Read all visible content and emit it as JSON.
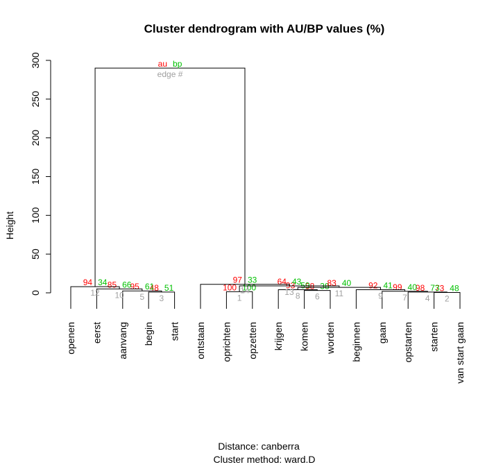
{
  "colors": {
    "au": "#ff0000",
    "bp": "#00c000",
    "edge": "#a0a0a0",
    "line": "#000000"
  },
  "legend": {
    "au": "au",
    "bp": "bp",
    "edge": "edge #"
  },
  "chart_data": {
    "type": "dendrogram",
    "title": "Cluster dendrogram with AU/BP values (%)",
    "ylabel": "Height",
    "xlabel": "",
    "ylim": [
      0,
      300
    ],
    "yticks": [
      0,
      50,
      100,
      150,
      200,
      250,
      300
    ],
    "subtitle_lines": [
      "Distance:  canberra",
      "Cluster method: ward.D"
    ],
    "leaves": [
      "openen",
      "eerst",
      "aanvang",
      "begin",
      "start",
      "ontstaan",
      "oprichten",
      "opzetten",
      "krijgen",
      "komen",
      "worden",
      "beginnen",
      "gaan",
      "opstarten",
      "starten",
      "van start gaan"
    ],
    "merges": [
      {
        "id": "c1",
        "left": "oprichten",
        "right": "opzetten",
        "height": 1.5,
        "au": "100",
        "bp": "100",
        "edge": "1"
      },
      {
        "id": "c2",
        "left": "starten",
        "right": "van start gaan",
        "height": 0.5,
        "au": "73",
        "bp": "48",
        "edge": "2"
      },
      {
        "id": "c3",
        "left": "begin",
        "right": "start",
        "height": 1.0,
        "au": "48",
        "bp": "51",
        "edge": "3"
      },
      {
        "id": "c4",
        "left": "opstarten",
        "right": "c2",
        "height": 1.0,
        "au": "98",
        "bp": "73",
        "edge": "4"
      },
      {
        "id": "c5",
        "left": "aanvang",
        "right": "c3",
        "height": 2.5,
        "au": "95",
        "bp": "61",
        "edge": "5"
      },
      {
        "id": "c6",
        "left": "komen",
        "right": "worden",
        "height": 3.0,
        "au": "58",
        "bp": "38",
        "edge": "6"
      },
      {
        "id": "c7",
        "left": "gaan",
        "right": "c4",
        "height": 2.0,
        "au": "99",
        "bp": "40",
        "edge": "7"
      },
      {
        "id": "c8",
        "left": "krijgen",
        "right": "c6",
        "height": 4.0,
        "au": "93",
        "bp": "59",
        "edge": "8"
      },
      {
        "id": "c9",
        "left": "beginnen",
        "right": "c7",
        "height": 4.0,
        "au": "92",
        "bp": "41",
        "edge": "9"
      },
      {
        "id": "c10",
        "left": "eerst",
        "right": "c5",
        "height": 5.0,
        "au": "85",
        "bp": "66",
        "edge": "10"
      },
      {
        "id": "c11",
        "left": "c8",
        "right": "c9",
        "height": 7.0,
        "au": "83",
        "bp": "40",
        "edge": "11"
      },
      {
        "id": "c12",
        "left": "openen",
        "right": "c10",
        "height": 8.0,
        "au": "94",
        "bp": "34",
        "edge": "12"
      },
      {
        "id": "c13",
        "left": "c1",
        "right": "c11",
        "height": 9.0,
        "au": "64",
        "bp": "43",
        "edge": "13"
      },
      {
        "id": "c14",
        "left": "ontstaan",
        "right": "c13",
        "height": 11.0,
        "au": "97",
        "bp": "33",
        "edge": "14"
      },
      {
        "id": "c15",
        "left": "c12",
        "right": "c14",
        "height": 290.0,
        "au": "au",
        "bp": "bp",
        "edge": "edge #"
      }
    ]
  }
}
